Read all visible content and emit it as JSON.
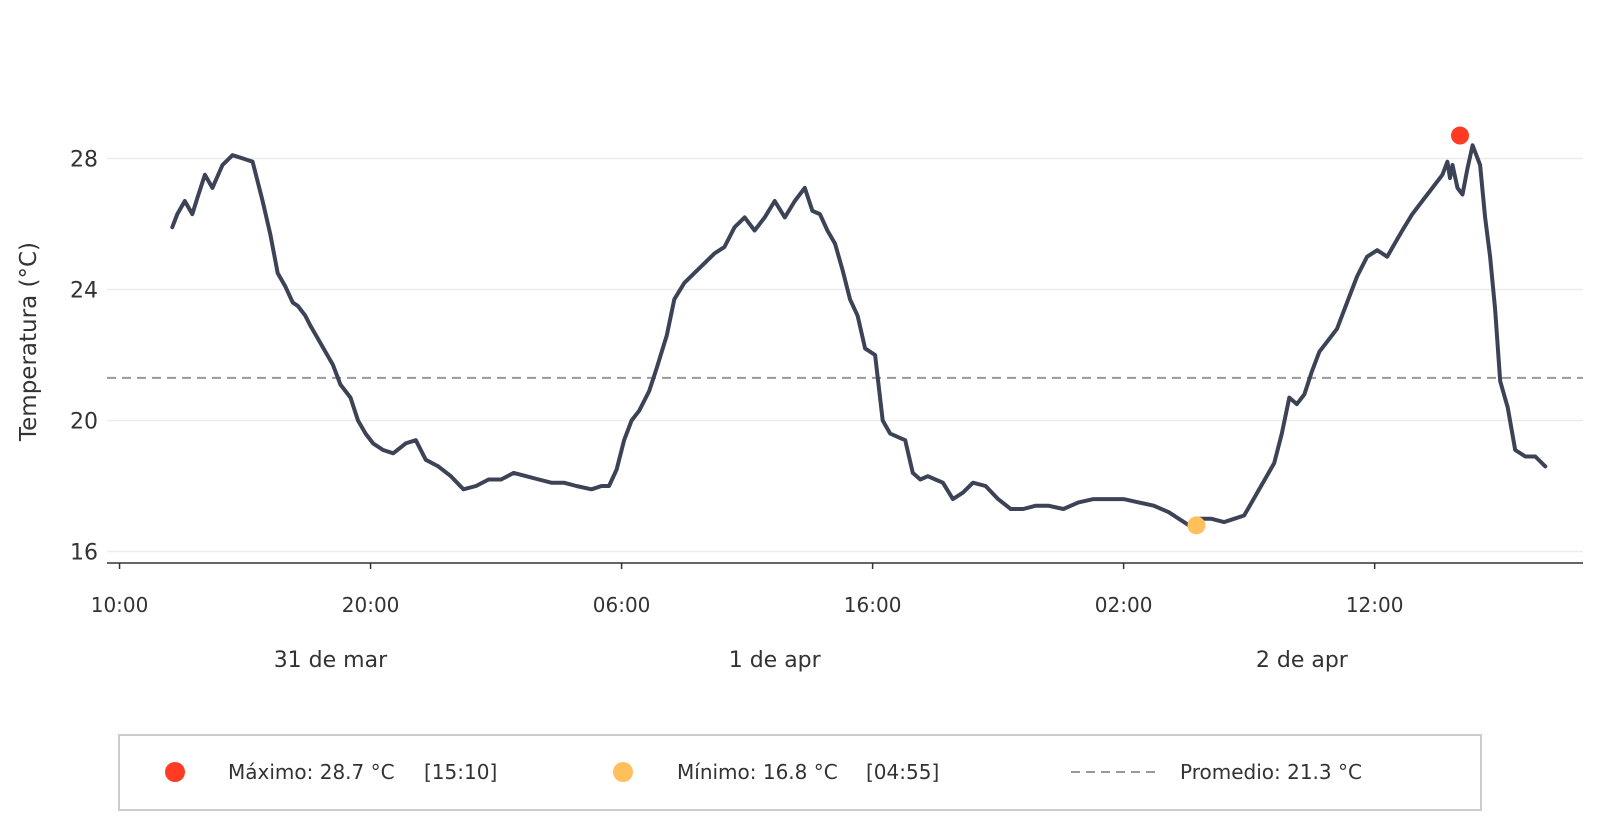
{
  "chart_data": {
    "type": "line",
    "title": "",
    "ylabel": "Temperatura (°C)",
    "xlabel": "",
    "ylim": [
      15.65,
      30.7
    ],
    "xlim_hours": [
      9.5,
      68.3
    ],
    "yticks": [
      16,
      20,
      24,
      28
    ],
    "xticks": [
      {
        "hour": 10,
        "label": "10:00"
      },
      {
        "hour": 20,
        "label": "20:00"
      },
      {
        "hour": 30,
        "label": "06:00"
      },
      {
        "hour": 40,
        "label": "16:00"
      },
      {
        "hour": 50,
        "label": "02:00"
      },
      {
        "hour": 60,
        "label": "12:00"
      }
    ],
    "date_labels": [
      {
        "hour": 18.4,
        "label": "31 de mar"
      },
      {
        "hour": 36.1,
        "label": "1 de apr"
      },
      {
        "hour": 57.1,
        "label": "2 de apr"
      }
    ],
    "grid": {
      "y": true,
      "x": false
    },
    "colors": {
      "line": "#3d4356",
      "max": "#ff3b24",
      "min": "#ffbf5c",
      "mean": "#999999"
    },
    "series": [
      {
        "x": [
          12.1,
          12.3,
          12.6,
          12.9,
          13.1,
          13.4,
          13.7,
          14.1,
          14.5,
          14.9,
          15.3,
          15.7,
          16.0,
          16.3,
          16.6,
          16.9,
          17.1,
          17.4,
          17.6,
          17.9,
          18.2,
          18.5,
          18.8,
          19.2,
          19.5,
          19.8,
          20.1,
          20.5,
          20.9,
          21.4,
          21.8,
          22.2,
          22.7,
          23.2,
          23.7,
          24.2,
          24.7,
          25.2,
          25.7,
          26.2,
          26.7,
          27.2,
          27.7,
          28.2,
          28.8,
          29.2,
          29.5,
          29.8,
          30.1,
          30.4,
          30.7,
          31.1,
          31.4,
          31.8,
          32.1,
          32.5,
          32.9,
          33.3,
          33.7,
          34.1,
          34.5,
          34.9,
          35.3,
          35.7,
          36.1,
          36.5,
          36.9,
          37.3,
          37.6,
          37.9,
          38.2,
          38.5,
          38.8,
          39.1,
          39.4,
          39.7,
          40.1,
          40.4,
          40.7,
          41.0,
          41.3,
          41.6,
          41.9,
          42.2,
          42.5,
          42.8,
          43.2,
          43.6,
          44.0,
          44.5,
          45.0,
          45.5,
          46.0,
          46.5,
          47.0,
          47.6,
          48.2,
          48.8,
          49.4,
          50.0,
          50.6,
          51.2,
          51.8,
          52.2,
          52.6,
          52.9,
          53.5,
          54.0,
          54.4,
          54.8,
          55.1,
          55.4,
          55.7,
          56.0,
          56.3,
          56.6,
          56.9,
          57.2,
          57.5,
          57.8,
          58.1,
          58.5,
          58.9,
          59.3,
          59.7,
          60.1,
          60.5,
          60.8,
          61.1,
          61.5,
          61.9,
          62.3,
          62.7,
          62.9,
          63.0,
          63.1,
          63.3,
          63.5,
          63.7,
          63.9,
          64.2,
          64.4,
          64.6,
          64.8,
          65.0,
          65.3,
          65.6,
          66.0,
          66.4,
          66.8
        ],
        "y": [
          25.9,
          26.3,
          26.7,
          26.3,
          26.8,
          27.5,
          27.1,
          27.8,
          28.1,
          28.0,
          27.9,
          26.7,
          25.7,
          24.5,
          24.1,
          23.6,
          23.5,
          23.2,
          22.9,
          22.5,
          22.1,
          21.7,
          21.1,
          20.7,
          20.0,
          19.6,
          19.3,
          19.1,
          19.0,
          19.3,
          19.4,
          18.8,
          18.6,
          18.3,
          17.9,
          18.0,
          18.2,
          18.2,
          18.4,
          18.3,
          18.2,
          18.1,
          18.1,
          18.0,
          17.9,
          18.0,
          18.0,
          18.5,
          19.4,
          20.0,
          20.3,
          20.9,
          21.6,
          22.6,
          23.7,
          24.2,
          24.5,
          24.8,
          25.1,
          25.3,
          25.9,
          26.2,
          25.8,
          26.2,
          26.7,
          26.2,
          26.7,
          27.1,
          26.4,
          26.3,
          25.8,
          25.4,
          24.6,
          23.7,
          23.2,
          22.2,
          22.0,
          20.0,
          19.6,
          19.5,
          19.4,
          18.4,
          18.2,
          18.3,
          18.2,
          18.1,
          17.6,
          17.8,
          18.1,
          18.0,
          17.6,
          17.3,
          17.3,
          17.4,
          17.4,
          17.3,
          17.5,
          17.6,
          17.6,
          17.6,
          17.5,
          17.4,
          17.2,
          17.0,
          16.8,
          17.0,
          17.0,
          16.9,
          17.0,
          17.1,
          17.5,
          17.9,
          18.3,
          18.7,
          19.6,
          20.7,
          20.5,
          20.8,
          21.5,
          22.1,
          22.4,
          22.8,
          23.6,
          24.4,
          25.0,
          25.2,
          25.0,
          25.4,
          25.8,
          26.3,
          26.7,
          27.1,
          27.5,
          27.9,
          27.4,
          27.8,
          27.1,
          26.9,
          27.7,
          28.4,
          27.8,
          26.2,
          25.0,
          23.4,
          21.2,
          20.4,
          19.1,
          18.9,
          18.9,
          18.6
        ]
      }
    ],
    "max_point": {
      "x": 63.4,
      "y": 28.7
    },
    "min_point": {
      "x": 52.9,
      "y": 16.8
    },
    "mean_value": 21.3,
    "legend": {
      "placement": "bottom",
      "max_label": "Máximo: 28.7 °C",
      "max_time": "[15:10]",
      "min_label": "Mínimo: 16.8 °C",
      "min_time": "[04:55]",
      "mean_label": "Promedio: 21.3 °C"
    }
  }
}
